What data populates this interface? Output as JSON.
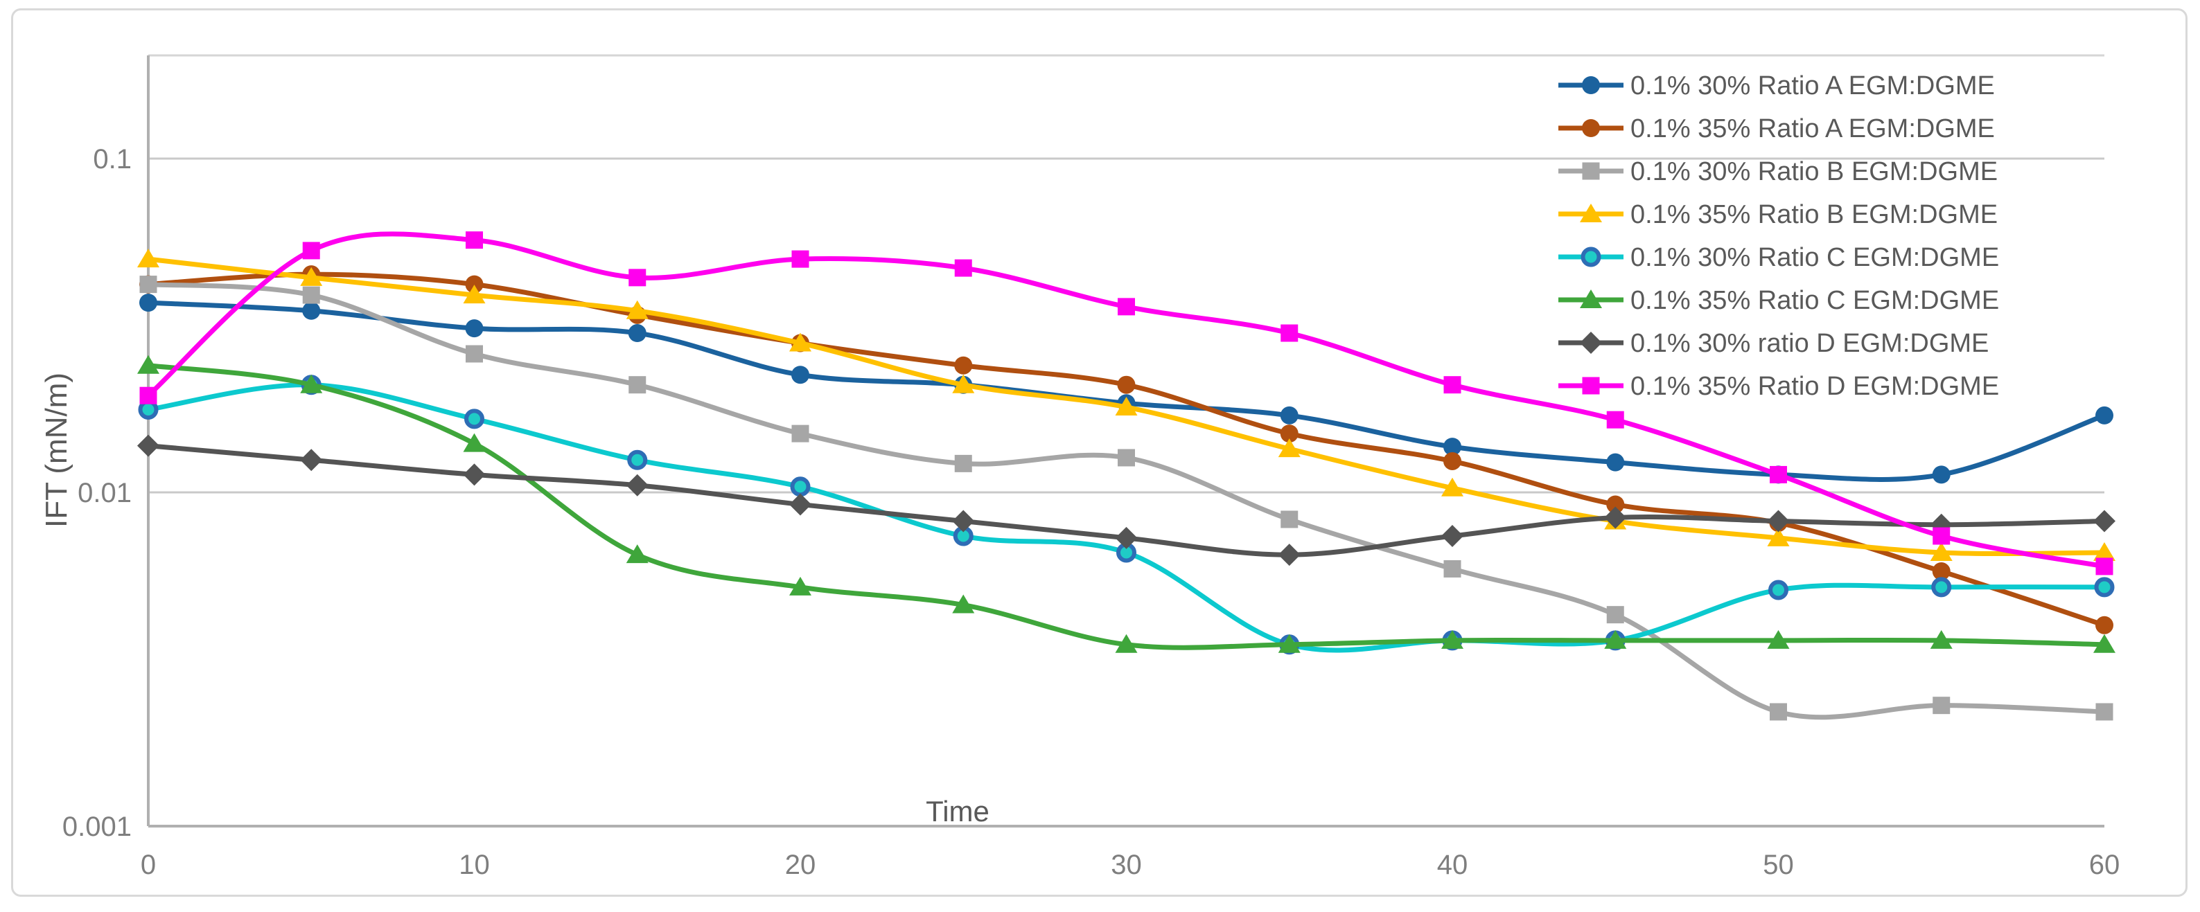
{
  "figure": {
    "background": "#ffffff",
    "border_color": "#d9d9d9",
    "plot_border_color": "#d6d6d6",
    "axis_line_color": "#b0b0b0",
    "gridline_color": "#c9c9c9",
    "tick_label_color": "#7e7e7e",
    "axis_title_color": "#595959",
    "legend_text_color": "#595959"
  },
  "chart_data": {
    "type": "line",
    "title": "",
    "xlabel": "Time",
    "ylabel": "IFT (mN/m)",
    "x_range": [
      0,
      60
    ],
    "y_scale": "log",
    "y_range": [
      0.001,
      0.204
    ],
    "x_tick_labels": [
      "0",
      "10",
      "20",
      "30",
      "40",
      "50",
      "60"
    ],
    "x_tick_values": [
      0,
      10,
      20,
      30,
      40,
      50,
      60
    ],
    "y_tick_labels": [
      "0.1",
      "0.01",
      "0.001"
    ],
    "y_tick_values": [
      0.1,
      0.01,
      0.001
    ],
    "grid": "horizontal-decades-only",
    "legend_position": "top-right-inside",
    "line_style": "smoothed",
    "x": [
      0,
      5,
      10,
      15,
      20,
      25,
      30,
      35,
      40,
      45,
      50,
      55,
      60
    ],
    "series": [
      {
        "name": "0.1% 30% Ratio A EGM:DGME",
        "color": "#1b629e",
        "marker": "circle",
        "values": [
          0.037,
          0.035,
          0.031,
          0.03,
          0.0225,
          0.021,
          0.0185,
          0.017,
          0.0137,
          0.0123,
          0.0113,
          0.0113,
          0.017
        ]
      },
      {
        "name": "0.1% 35% Ratio A EGM:DGME",
        "color": "#b04f10",
        "marker": "circle",
        "values": [
          0.042,
          0.045,
          0.042,
          0.034,
          0.028,
          0.024,
          0.021,
          0.015,
          0.0124,
          0.0092,
          0.0081,
          0.0058,
          0.004
        ]
      },
      {
        "name": "0.1% 30% Ratio B EGM:DGME",
        "color": "#a6a6a6",
        "marker": "square",
        "values": [
          0.042,
          0.039,
          0.026,
          0.021,
          0.015,
          0.0122,
          0.0127,
          0.0083,
          0.0059,
          0.0043,
          0.0022,
          0.0023,
          0.0022
        ]
      },
      {
        "name": "0.1% 35% Ratio B EGM:DGME",
        "color": "#ffc000",
        "marker": "triangle",
        "values": [
          0.05,
          0.044,
          0.039,
          0.035,
          0.028,
          0.021,
          0.018,
          0.0135,
          0.0103,
          0.0082,
          0.0073,
          0.0066,
          0.0066
        ]
      },
      {
        "name": "0.1% 30% Ratio C EGM:DGME",
        "color": "#0cc9ce",
        "marker": "circle-ring",
        "marker_fill": "#1fccc6",
        "marker_ring": "#2e6db5",
        "values": [
          0.0177,
          0.021,
          0.0166,
          0.0125,
          0.0104,
          0.0074,
          0.0066,
          0.0035,
          0.0036,
          0.0036,
          0.0051,
          0.0052,
          0.0052
        ]
      },
      {
        "name": "0.1% 35% Ratio C EGM:DGME",
        "color": "#3fa63b",
        "marker": "triangle",
        "values": [
          0.024,
          0.021,
          0.014,
          0.0065,
          0.0052,
          0.0046,
          0.0035,
          0.0035,
          0.0036,
          0.0036,
          0.0036,
          0.0036,
          0.0035
        ]
      },
      {
        "name": "0.1% 30% ratio D EGM:DGME",
        "color": "#545454",
        "marker": "diamond",
        "values": [
          0.0138,
          0.0125,
          0.0113,
          0.0105,
          0.0092,
          0.0082,
          0.0073,
          0.0065,
          0.0074,
          0.0084,
          0.0082,
          0.008,
          0.0082
        ]
      },
      {
        "name": "0.1% 35% Ratio D EGM:DGME",
        "color": "#ff00ee",
        "marker": "square",
        "values": [
          0.0195,
          0.053,
          0.057,
          0.044,
          0.05,
          0.047,
          0.036,
          0.03,
          0.021,
          0.0165,
          0.0113,
          0.0074,
          0.006
        ]
      }
    ]
  }
}
